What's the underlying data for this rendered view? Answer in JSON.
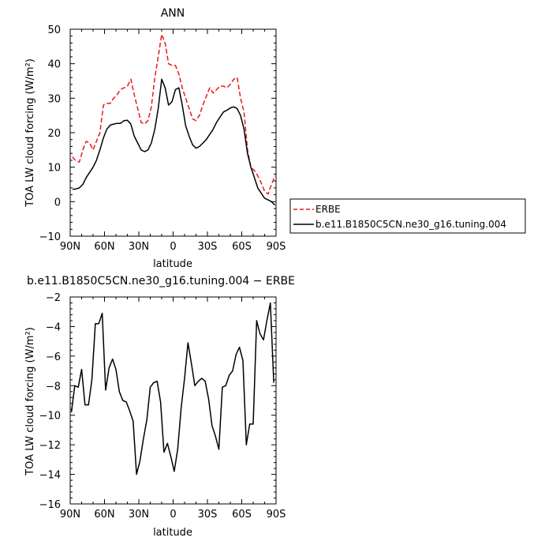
{
  "chart_data": [
    {
      "type": "line",
      "title": "ANN",
      "xlabel": "latitude",
      "ylabel": "TOA LW cloud forcing (W/m²)",
      "xlim": [
        90,
        -90
      ],
      "ylim": [
        -10,
        50
      ],
      "xticks": [
        90,
        60,
        30,
        0,
        -30,
        -60,
        -90
      ],
      "xtick_labels": [
        "90N",
        "60N",
        "30N",
        "0",
        "30S",
        "60S",
        "90S"
      ],
      "yticks": [
        -10,
        0,
        10,
        20,
        30,
        40,
        50
      ],
      "ytick_labels": [
        "−10",
        "0",
        "10",
        "20",
        "30",
        "40",
        "50"
      ],
      "legend_position": "right",
      "x": [
        88,
        85,
        82,
        79,
        76,
        73,
        70,
        67,
        64,
        61,
        58,
        55,
        52,
        49,
        46,
        43,
        40,
        37,
        34,
        31,
        28,
        25,
        22,
        19,
        16,
        13,
        10,
        7,
        4,
        1,
        -2,
        -5,
        -8,
        -11,
        -14,
        -17,
        -20,
        -23,
        -26,
        -29,
        -32,
        -35,
        -38,
        -41,
        -44,
        -47,
        -50,
        -53,
        -56,
        -59,
        -62,
        -65,
        -68,
        -71,
        -74,
        -77,
        -80,
        -83,
        -86,
        -89
      ],
      "series": [
        {
          "name": "ERBE",
          "color": "#e8191c",
          "dash": "dashed",
          "values": [
            13,
            11.8,
            11.5,
            15,
            17.5,
            17,
            15,
            17.5,
            20,
            28,
            28.5,
            28.5,
            30,
            31,
            32.5,
            33,
            33.5,
            35.5,
            31,
            27,
            23,
            22.5,
            23.5,
            27.5,
            36,
            42,
            48.5,
            46,
            40,
            39.5,
            39.5,
            37,
            33,
            30,
            27,
            24,
            23.5,
            25,
            28,
            30.5,
            33,
            31.5,
            32.5,
            33.5,
            33.5,
            33,
            34,
            35.5,
            36,
            30,
            26,
            15,
            10,
            9,
            7.5,
            5.5,
            3,
            2.2,
            5,
            7.5
          ]
        },
        {
          "name": "b.e11.B1850C5CN.ne30_g16.tuning.004",
          "color": "#000000",
          "dash": "solid",
          "values": [
            3.6,
            3.7,
            4,
            5,
            7,
            8.5,
            10,
            12,
            15,
            18.5,
            21,
            22.2,
            22.5,
            22.7,
            22.7,
            23.5,
            23.6,
            22.5,
            19,
            17,
            15,
            14.5,
            15,
            17,
            21,
            27,
            35.5,
            33,
            28,
            29,
            32.5,
            33,
            28,
            22,
            19,
            16.5,
            15.5,
            16,
            17,
            18,
            19.5,
            21,
            23,
            24.5,
            26,
            26.5,
            27.2,
            27.5,
            27,
            25,
            21,
            14,
            10,
            7,
            4,
            2.5,
            1,
            0.5,
            0,
            -1
          ]
        }
      ]
    },
    {
      "type": "line",
      "title": "b.e11.B1850C5CN.ne30_g16.tuning.004 − ERBE",
      "xlabel": "latitude",
      "ylabel": "TOA LW cloud forcing (W/m²)",
      "xlim": [
        90,
        -90
      ],
      "ylim": [
        -16,
        -2
      ],
      "xticks": [
        90,
        60,
        30,
        0,
        -30,
        -60,
        -90
      ],
      "xtick_labels": [
        "90N",
        "60N",
        "30N",
        "0",
        "30S",
        "60S",
        "90S"
      ],
      "yticks": [
        -16,
        -14,
        -12,
        -10,
        -8,
        -6,
        -4,
        -2
      ],
      "ytick_labels": [
        "−16",
        "−14",
        "−12",
        "−10",
        "−8",
        "−6",
        "−4",
        "−2"
      ],
      "x": [
        89,
        86,
        83,
        80,
        77,
        74,
        71,
        68,
        65,
        62,
        59,
        56,
        53,
        50,
        47,
        44,
        41,
        38,
        35,
        32,
        29,
        26,
        23,
        20,
        17,
        14,
        11,
        8,
        5,
        2,
        -1,
        -4,
        -7,
        -10,
        -13,
        -16,
        -19,
        -22,
        -25,
        -28,
        -31,
        -34,
        -37,
        -40,
        -43,
        -46,
        -49,
        -52,
        -55,
        -58,
        -61,
        -64,
        -67,
        -70,
        -73,
        -76,
        -79,
        -82,
        -85,
        -88
      ],
      "series": [
        {
          "color": "#000000",
          "dash": "solid",
          "values": [
            -9.8,
            -8.0,
            -8.1,
            -6.9,
            -9.3,
            -9.3,
            -7.6,
            -3.8,
            -3.8,
            -3.1,
            -8.3,
            -6.8,
            -6.2,
            -6.9,
            -8.4,
            -9.0,
            -9.1,
            -9.7,
            -10.4,
            -14.0,
            -13.1,
            -11.6,
            -10.3,
            -8.1,
            -7.8,
            -7.7,
            -9.1,
            -12.5,
            -11.9,
            -12.8,
            -13.8,
            -12.3,
            -9.5,
            -7.5,
            -5.1,
            -6.5,
            -8.0,
            -7.7,
            -7.5,
            -7.7,
            -8.9,
            -10.7,
            -11.4,
            -12.3,
            -8.1,
            -8.0,
            -7.3,
            -7.0,
            -5.9,
            -5.4,
            -6.3,
            -12.0,
            -10.6,
            -10.6,
            -3.6,
            -4.5,
            -4.9,
            -3.6,
            -2.4,
            -7.8
          ]
        }
      ]
    }
  ]
}
